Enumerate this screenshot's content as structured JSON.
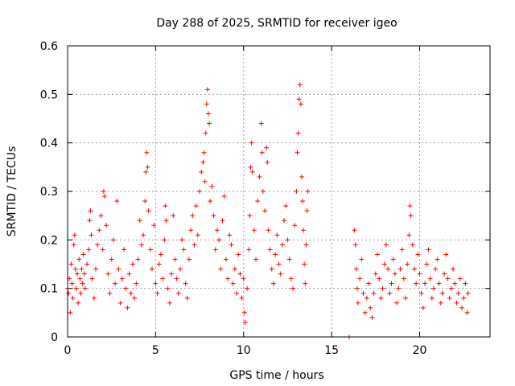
{
  "chart_data": {
    "type": "scatter",
    "title": "Day 288 of 2025, SRMTID for receiver igeo",
    "xlabel": "GPS time / hours",
    "ylabel": "SRMTID / TECUs",
    "xlim": [
      0,
      24
    ],
    "ylim": [
      0,
      0.6
    ],
    "xticks": [
      "0",
      "5",
      "10",
      "15",
      "20"
    ],
    "yticks": [
      "0",
      "0.1",
      "0.2",
      "0.3",
      "0.4",
      "0.5",
      "0.6"
    ],
    "grid": true,
    "marker": "plus",
    "colors": {
      "series": "#ff0000"
    },
    "series": [
      {
        "name": "SRMTID",
        "points": [
          [
            0.0,
            0.1
          ],
          [
            0.05,
            0.09
          ],
          [
            0.1,
            0.12
          ],
          [
            0.15,
            0.05
          ],
          [
            0.2,
            0.15
          ],
          [
            0.25,
            0.11
          ],
          [
            0.3,
            0.08
          ],
          [
            0.35,
            0.19
          ],
          [
            0.4,
            0.21
          ],
          [
            0.45,
            0.14
          ],
          [
            0.5,
            0.1
          ],
          [
            0.55,
            0.13
          ],
          [
            0.6,
            0.07
          ],
          [
            0.65,
            0.16
          ],
          [
            0.7,
            0.12
          ],
          [
            0.75,
            0.09
          ],
          [
            0.8,
            0.14
          ],
          [
            0.85,
            0.11
          ],
          [
            0.9,
            0.17
          ],
          [
            0.95,
            0.13
          ],
          [
            1.0,
            0.1
          ],
          [
            1.1,
            0.15
          ],
          [
            1.2,
            0.18
          ],
          [
            1.25,
            0.24
          ],
          [
            1.3,
            0.26
          ],
          [
            1.35,
            0.21
          ],
          [
            1.4,
            0.12
          ],
          [
            1.5,
            0.08
          ],
          [
            1.6,
            0.14
          ],
          [
            1.7,
            0.19
          ],
          [
            1.8,
            0.22
          ],
          [
            1.9,
            0.25
          ],
          [
            2.0,
            0.18
          ],
          [
            2.05,
            0.3
          ],
          [
            2.1,
            0.29
          ],
          [
            2.2,
            0.23
          ],
          [
            2.3,
            0.13
          ],
          [
            2.4,
            0.09
          ],
          [
            2.5,
            0.16
          ],
          [
            2.6,
            0.2
          ],
          [
            2.7,
            0.11
          ],
          [
            2.8,
            0.28
          ],
          [
            2.9,
            0.14
          ],
          [
            3.0,
            0.07
          ],
          [
            3.1,
            0.12
          ],
          [
            3.2,
            0.18
          ],
          [
            3.3,
            0.1
          ],
          [
            3.4,
            0.06
          ],
          [
            3.5,
            0.13
          ],
          [
            3.6,
            0.09
          ],
          [
            3.7,
            0.15
          ],
          [
            3.8,
            0.08
          ],
          [
            3.9,
            0.11
          ],
          [
            4.0,
            0.16
          ],
          [
            4.1,
            0.24
          ],
          [
            4.2,
            0.19
          ],
          [
            4.3,
            0.21
          ],
          [
            4.4,
            0.28
          ],
          [
            4.45,
            0.34
          ],
          [
            4.5,
            0.38
          ],
          [
            4.55,
            0.35
          ],
          [
            4.6,
            0.26
          ],
          [
            4.7,
            0.18
          ],
          [
            4.8,
            0.14
          ],
          [
            4.9,
            0.23
          ],
          [
            5.0,
            0.11
          ],
          [
            5.1,
            0.09
          ],
          [
            5.2,
            0.15
          ],
          [
            5.3,
            0.17
          ],
          [
            5.4,
            0.12
          ],
          [
            5.5,
            0.2
          ],
          [
            5.55,
            0.27
          ],
          [
            5.6,
            0.24
          ],
          [
            5.7,
            0.1
          ],
          [
            5.8,
            0.07
          ],
          [
            5.9,
            0.13
          ],
          [
            6.0,
            0.25
          ],
          [
            6.1,
            0.16
          ],
          [
            6.2,
            0.12
          ],
          [
            6.3,
            0.09
          ],
          [
            6.4,
            0.14
          ],
          [
            6.5,
            0.2
          ],
          [
            6.6,
            0.18
          ],
          [
            6.7,
            0.11
          ],
          [
            6.8,
            0.08
          ],
          [
            6.9,
            0.16
          ],
          [
            7.0,
            0.22
          ],
          [
            7.1,
            0.25
          ],
          [
            7.2,
            0.19
          ],
          [
            7.3,
            0.27
          ],
          [
            7.4,
            0.21
          ],
          [
            7.5,
            0.3
          ],
          [
            7.6,
            0.34
          ],
          [
            7.7,
            0.36
          ],
          [
            7.75,
            0.38
          ],
          [
            7.8,
            0.32
          ],
          [
            7.85,
            0.42
          ],
          [
            7.9,
            0.48
          ],
          [
            7.95,
            0.51
          ],
          [
            8.0,
            0.46
          ],
          [
            8.05,
            0.44
          ],
          [
            8.1,
            0.28
          ],
          [
            8.2,
            0.31
          ],
          [
            8.3,
            0.25
          ],
          [
            8.4,
            0.18
          ],
          [
            8.5,
            0.22
          ],
          [
            8.6,
            0.2
          ],
          [
            8.7,
            0.14
          ],
          [
            8.8,
            0.24
          ],
          [
            8.9,
            0.29
          ],
          [
            9.0,
            0.16
          ],
          [
            9.1,
            0.12
          ],
          [
            9.2,
            0.21
          ],
          [
            9.3,
            0.19
          ],
          [
            9.4,
            0.11
          ],
          [
            9.5,
            0.14
          ],
          [
            9.6,
            0.09
          ],
          [
            9.7,
            0.17
          ],
          [
            9.8,
            0.13
          ],
          [
            9.9,
            0.08
          ],
          [
            10.0,
            0.12
          ],
          [
            10.05,
            0.05
          ],
          [
            10.1,
            0.03
          ],
          [
            10.2,
            0.1
          ],
          [
            10.3,
            0.18
          ],
          [
            10.35,
            0.25
          ],
          [
            10.4,
            0.35
          ],
          [
            10.45,
            0.4
          ],
          [
            10.5,
            0.34
          ],
          [
            10.6,
            0.22
          ],
          [
            10.7,
            0.16
          ],
          [
            10.8,
            0.28
          ],
          [
            10.9,
            0.33
          ],
          [
            11.0,
            0.44
          ],
          [
            11.05,
            0.38
          ],
          [
            11.1,
            0.3
          ],
          [
            11.2,
            0.26
          ],
          [
            11.3,
            0.39
          ],
          [
            11.35,
            0.36
          ],
          [
            11.4,
            0.22
          ],
          [
            11.5,
            0.18
          ],
          [
            11.6,
            0.14
          ],
          [
            11.7,
            0.11
          ],
          [
            11.8,
            0.17
          ],
          [
            11.9,
            0.21
          ],
          [
            12.0,
            0.15
          ],
          [
            12.1,
            0.13
          ],
          [
            12.2,
            0.19
          ],
          [
            12.3,
            0.24
          ],
          [
            12.4,
            0.27
          ],
          [
            12.5,
            0.2
          ],
          [
            12.6,
            0.16
          ],
          [
            12.7,
            0.12
          ],
          [
            12.8,
            0.1
          ],
          [
            12.9,
            0.23
          ],
          [
            13.0,
            0.3
          ],
          [
            13.05,
            0.38
          ],
          [
            13.1,
            0.42
          ],
          [
            13.15,
            0.49
          ],
          [
            13.2,
            0.52
          ],
          [
            13.25,
            0.48
          ],
          [
            13.3,
            0.33
          ],
          [
            13.35,
            0.28
          ],
          [
            13.4,
            0.22
          ],
          [
            13.45,
            0.15
          ],
          [
            13.5,
            0.11
          ],
          [
            13.55,
            0.19
          ],
          [
            13.6,
            0.26
          ],
          [
            13.65,
            0.3
          ],
          [
            16.0,
            0.0
          ],
          [
            16.3,
            0.22
          ],
          [
            16.35,
            0.19
          ],
          [
            16.4,
            0.14
          ],
          [
            16.45,
            0.1
          ],
          [
            16.5,
            0.07
          ],
          [
            16.6,
            0.12
          ],
          [
            16.7,
            0.16
          ],
          [
            16.8,
            0.09
          ],
          [
            16.9,
            0.05
          ],
          [
            17.0,
            0.08
          ],
          [
            17.1,
            0.11
          ],
          [
            17.2,
            0.06
          ],
          [
            17.3,
            0.04
          ],
          [
            17.4,
            0.09
          ],
          [
            17.5,
            0.13
          ],
          [
            17.6,
            0.17
          ],
          [
            17.7,
            0.12
          ],
          [
            17.8,
            0.08
          ],
          [
            17.9,
            0.1
          ],
          [
            18.0,
            0.15
          ],
          [
            18.1,
            0.19
          ],
          [
            18.2,
            0.14
          ],
          [
            18.3,
            0.09
          ],
          [
            18.4,
            0.11
          ],
          [
            18.5,
            0.16
          ],
          [
            18.6,
            0.13
          ],
          [
            18.7,
            0.07
          ],
          [
            18.8,
            0.1
          ],
          [
            18.9,
            0.14
          ],
          [
            19.0,
            0.18
          ],
          [
            19.1,
            0.12
          ],
          [
            19.2,
            0.08
          ],
          [
            19.3,
            0.15
          ],
          [
            19.4,
            0.21
          ],
          [
            19.45,
            0.27
          ],
          [
            19.5,
            0.25
          ],
          [
            19.6,
            0.19
          ],
          [
            19.7,
            0.14
          ],
          [
            19.8,
            0.11
          ],
          [
            19.9,
            0.17
          ],
          [
            20.0,
            0.13
          ],
          [
            20.1,
            0.09
          ],
          [
            20.2,
            0.06
          ],
          [
            20.3,
            0.11
          ],
          [
            20.4,
            0.15
          ],
          [
            20.5,
            0.18
          ],
          [
            20.6,
            0.12
          ],
          [
            20.7,
            0.08
          ],
          [
            20.8,
            0.1
          ],
          [
            20.9,
            0.14
          ],
          [
            21.0,
            0.16
          ],
          [
            21.1,
            0.11
          ],
          [
            21.2,
            0.07
          ],
          [
            21.3,
            0.09
          ],
          [
            21.4,
            0.13
          ],
          [
            21.5,
            0.17
          ],
          [
            21.6,
            0.12
          ],
          [
            21.7,
            0.08
          ],
          [
            21.8,
            0.1
          ],
          [
            21.9,
            0.14
          ],
          [
            22.0,
            0.11
          ],
          [
            22.1,
            0.07
          ],
          [
            22.2,
            0.09
          ],
          [
            22.3,
            0.12
          ],
          [
            22.4,
            0.06
          ],
          [
            22.5,
            0.08
          ],
          [
            22.6,
            0.11
          ],
          [
            22.7,
            0.05
          ],
          [
            22.75,
            0.09
          ]
        ]
      }
    ]
  }
}
